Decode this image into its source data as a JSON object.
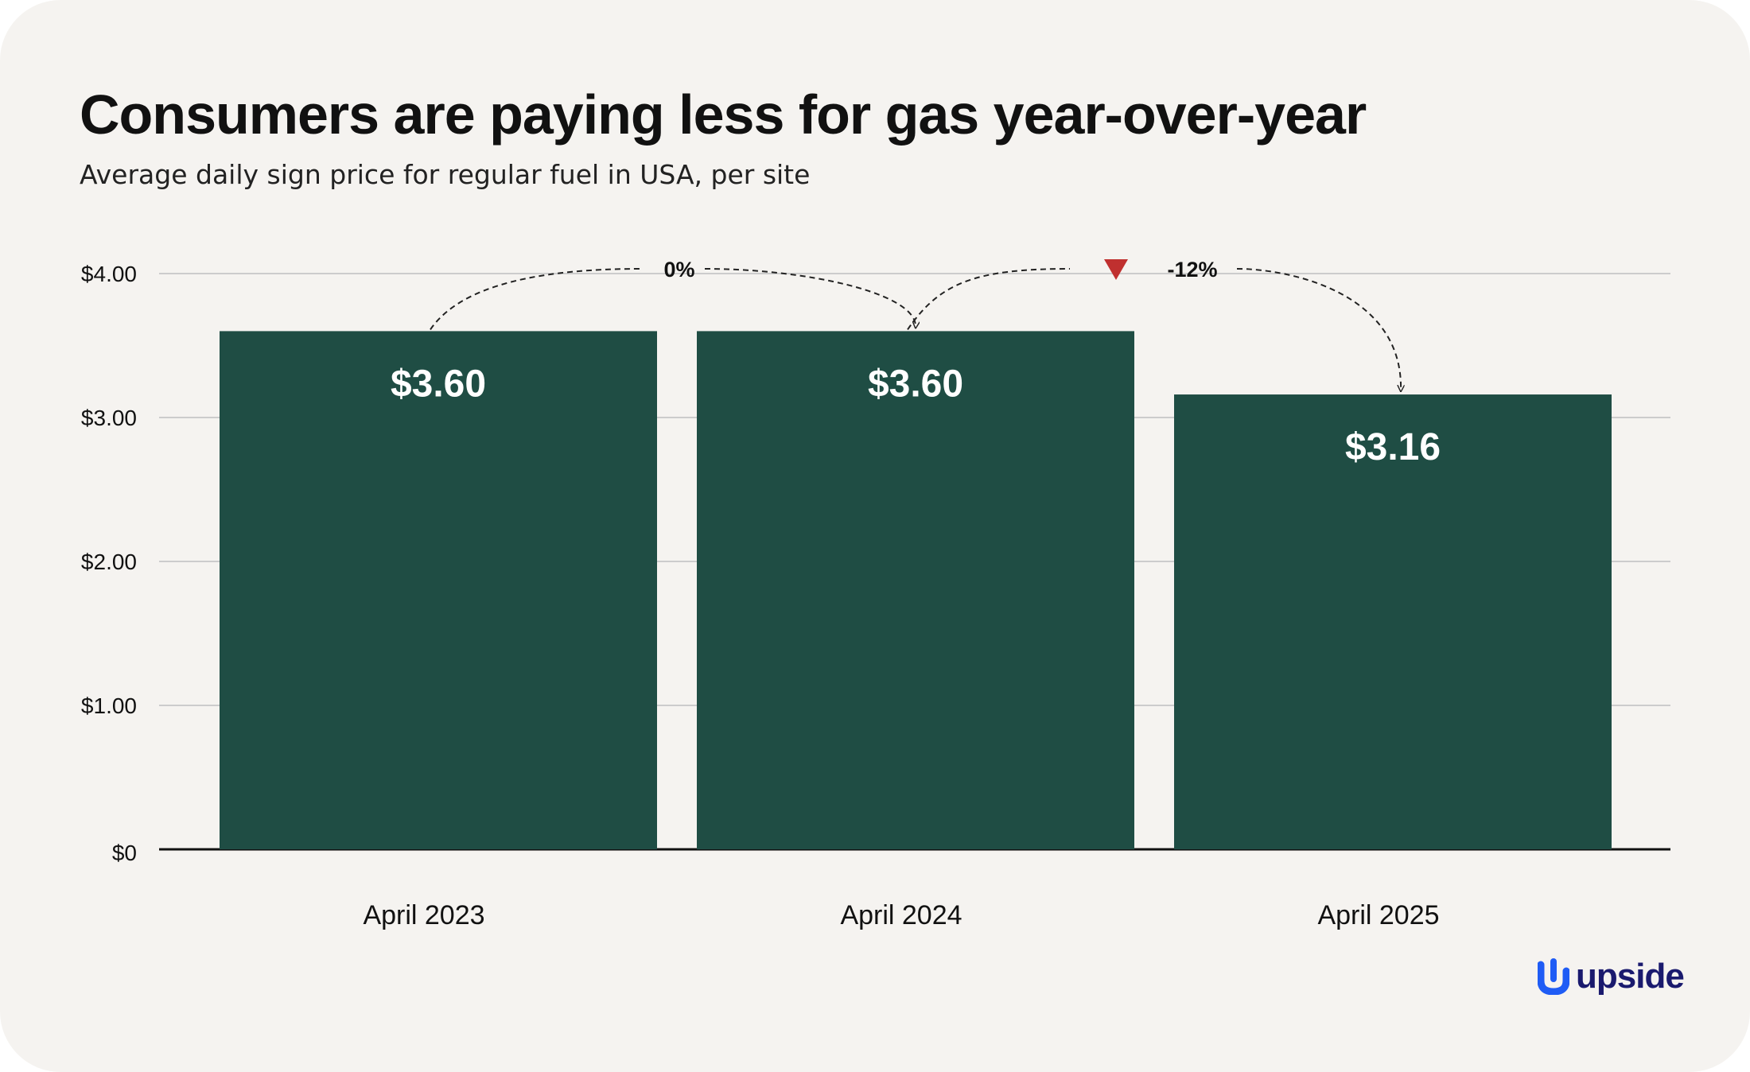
{
  "title": "Consumers are paying less for gas year-over-year",
  "subtitle": "Average daily sign price for regular fuel in USA, per site",
  "chart_data": {
    "type": "bar",
    "categories": [
      "April 2023",
      "April 2024",
      "April 2025"
    ],
    "values": [
      3.6,
      3.6,
      3.16
    ],
    "value_labels": [
      "$3.60",
      "$3.60",
      "$3.16"
    ],
    "yticks": [
      {
        "value": 0,
        "label": "$0"
      },
      {
        "value": 1,
        "label": "$1.00"
      },
      {
        "value": 2,
        "label": "$2.00"
      },
      {
        "value": 3,
        "label": "$3.00"
      },
      {
        "value": 4,
        "label": "$4.00"
      }
    ],
    "ylim": [
      0,
      4
    ],
    "grid": true,
    "annotations": [
      {
        "from": 0,
        "to": 1,
        "label": "0%",
        "direction": "none"
      },
      {
        "from": 1,
        "to": 2,
        "label": "-12%",
        "direction": "down"
      }
    ],
    "colors": {
      "bar": "#1f4d44",
      "grid": "#cccccc",
      "down_marker": "#c0302f",
      "background": "#f5f3f0"
    }
  },
  "brand": {
    "name": "upside",
    "color": "#1a1a6e",
    "icon_color": "#1f5cf5",
    "icon": "upside-logo-icon"
  }
}
